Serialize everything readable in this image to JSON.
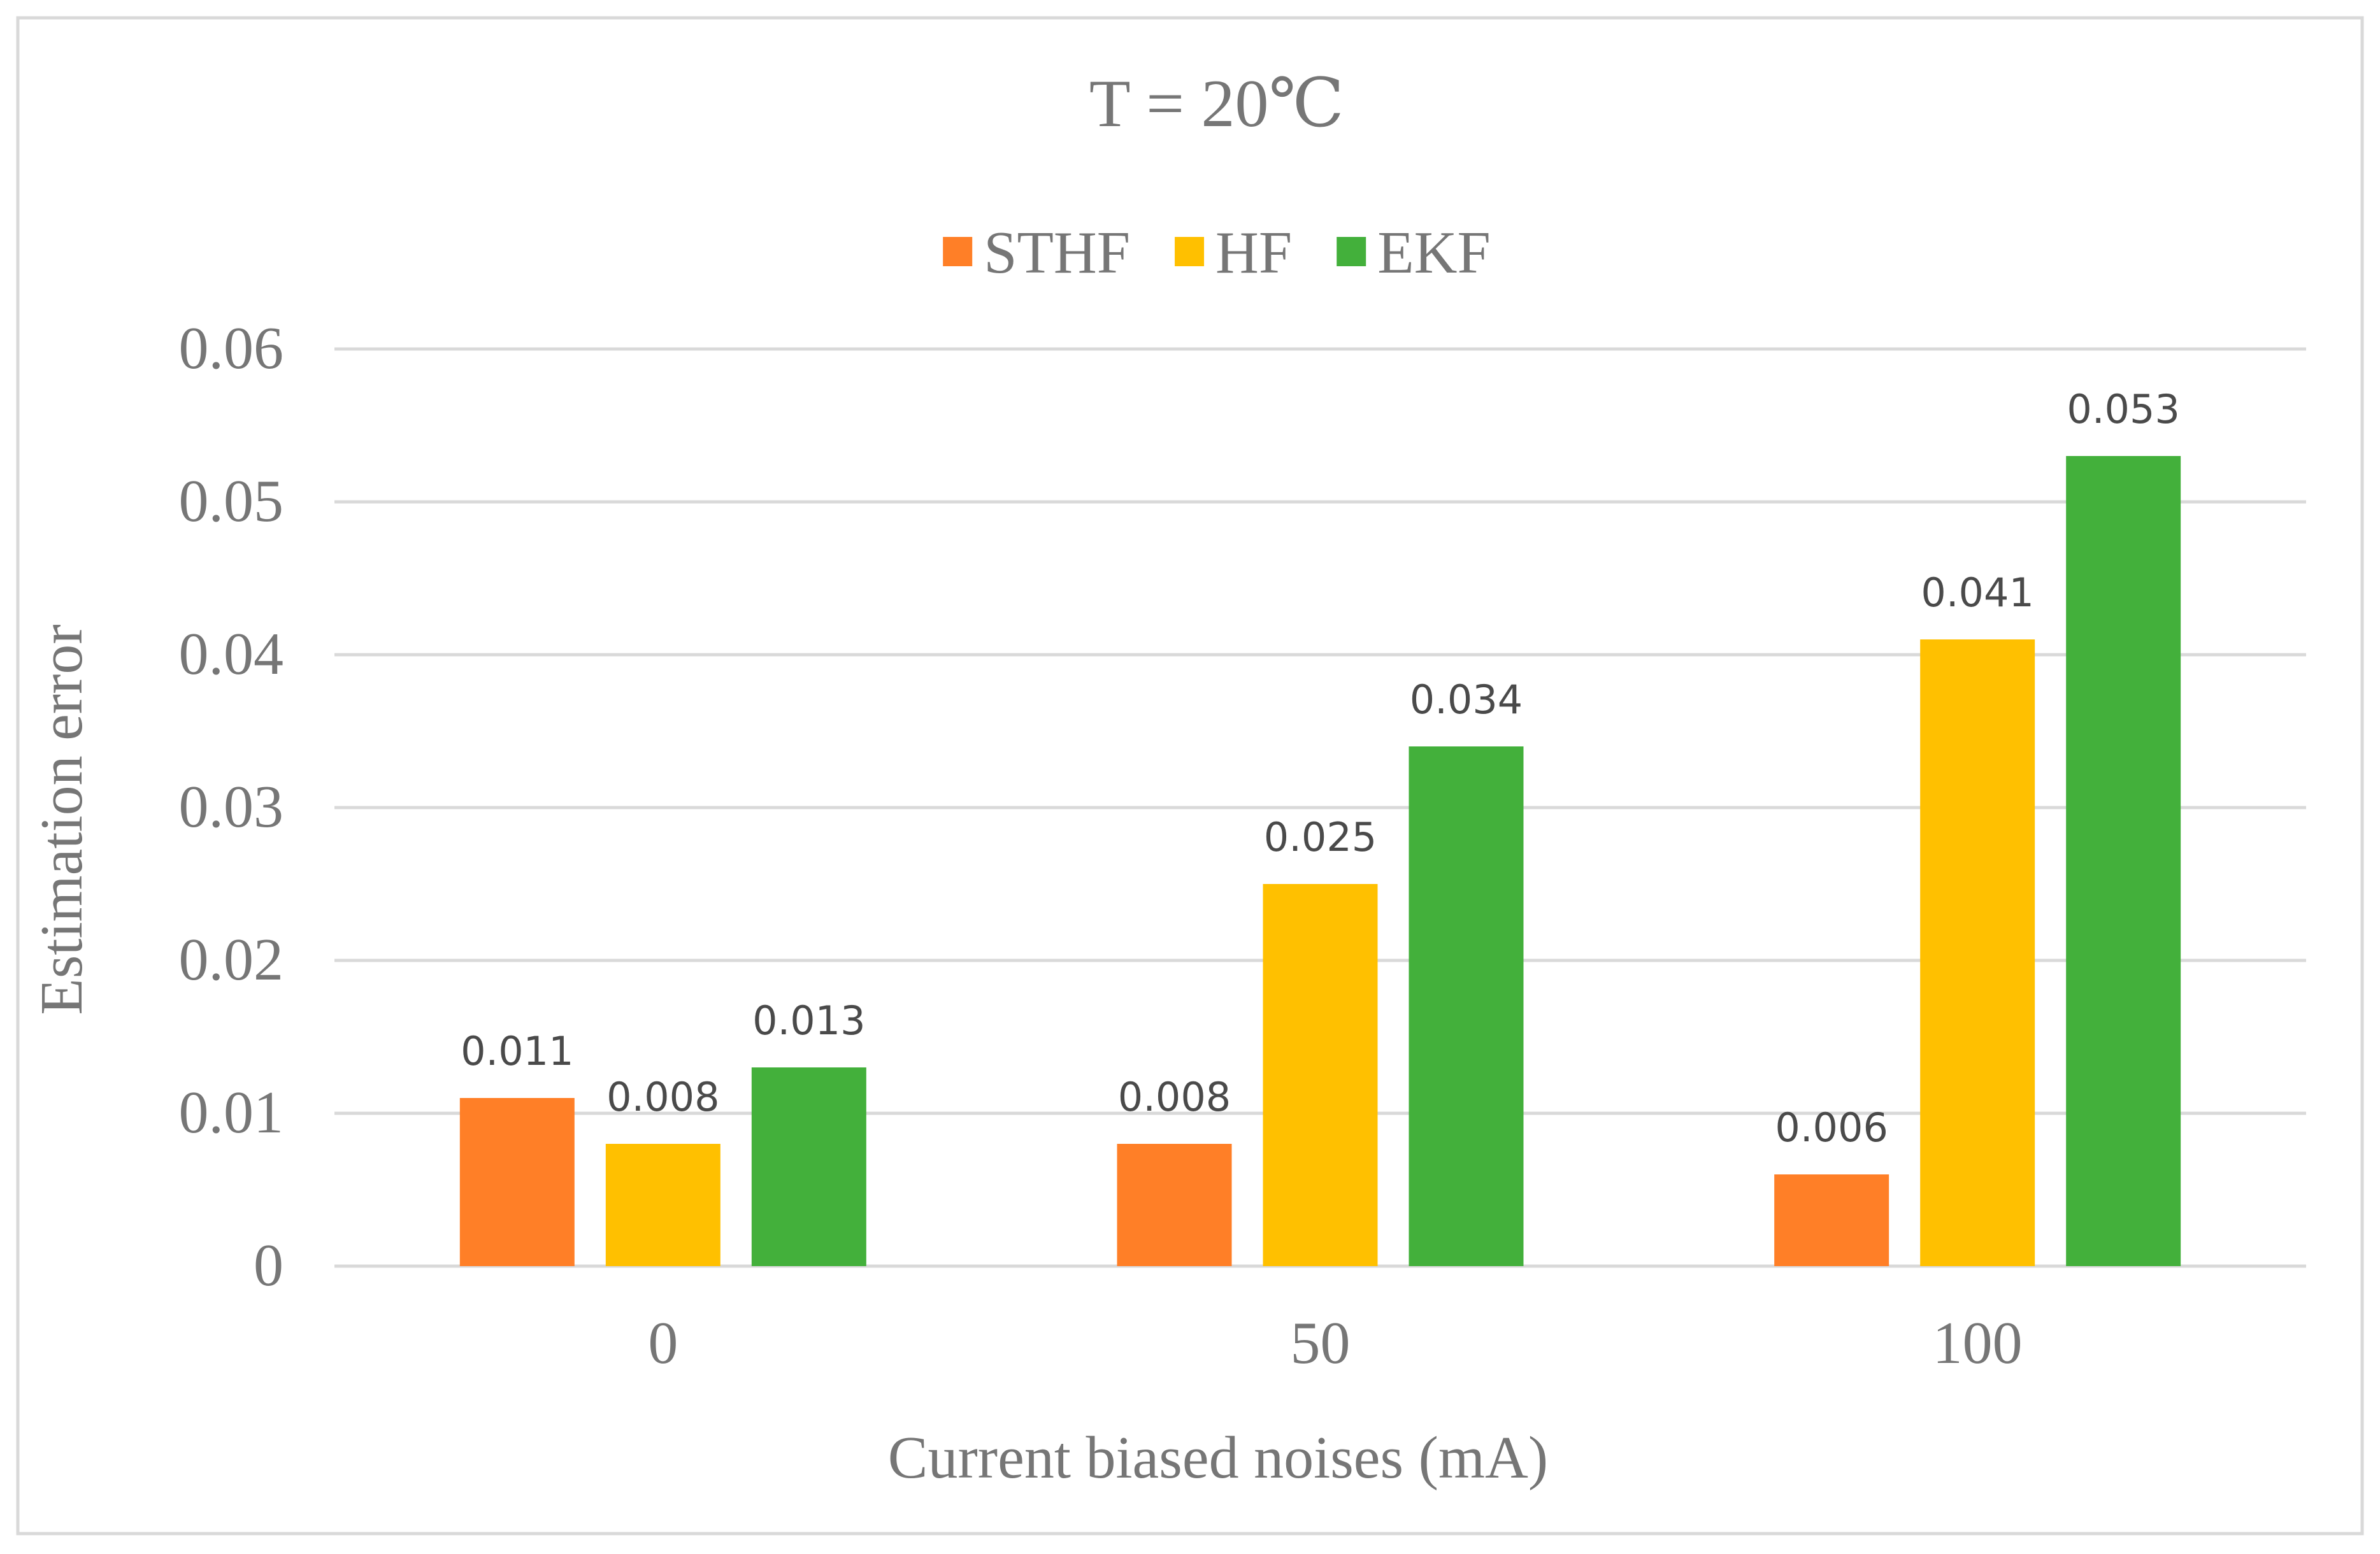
{
  "chart_data": {
    "type": "bar",
    "title": "T = 20℃",
    "xlabel": "Current biased noises (mA)",
    "ylabel": "Estimation error",
    "categories": [
      "0",
      "50",
      "100"
    ],
    "ylim": [
      0,
      0.06
    ],
    "yticks": [
      "0",
      "0.01",
      "0.02",
      "0.03",
      "0.04",
      "0.05",
      "0.06"
    ],
    "grid": true,
    "legend_position": "top-center",
    "series": [
      {
        "name": "STHF",
        "color": "#FF7F27",
        "values": [
          0.011,
          0.008,
          0.006
        ],
        "labels": [
          "0.011",
          "0.008",
          "0.006"
        ]
      },
      {
        "name": "HF",
        "color": "#FFC000",
        "values": [
          0.008,
          0.025,
          0.041
        ],
        "labels": [
          "0.008",
          "0.025",
          "0.041"
        ]
      },
      {
        "name": "EKF",
        "color": "#43B03B",
        "values": [
          0.013,
          0.034,
          0.053
        ],
        "labels": [
          "0.013",
          "0.034",
          "0.053"
        ]
      }
    ],
    "colors": {
      "grid": "#D9D9D9",
      "axis_text": "#767676",
      "data_label": "#4A4A4A",
      "frame": "#D9D9D9"
    }
  }
}
